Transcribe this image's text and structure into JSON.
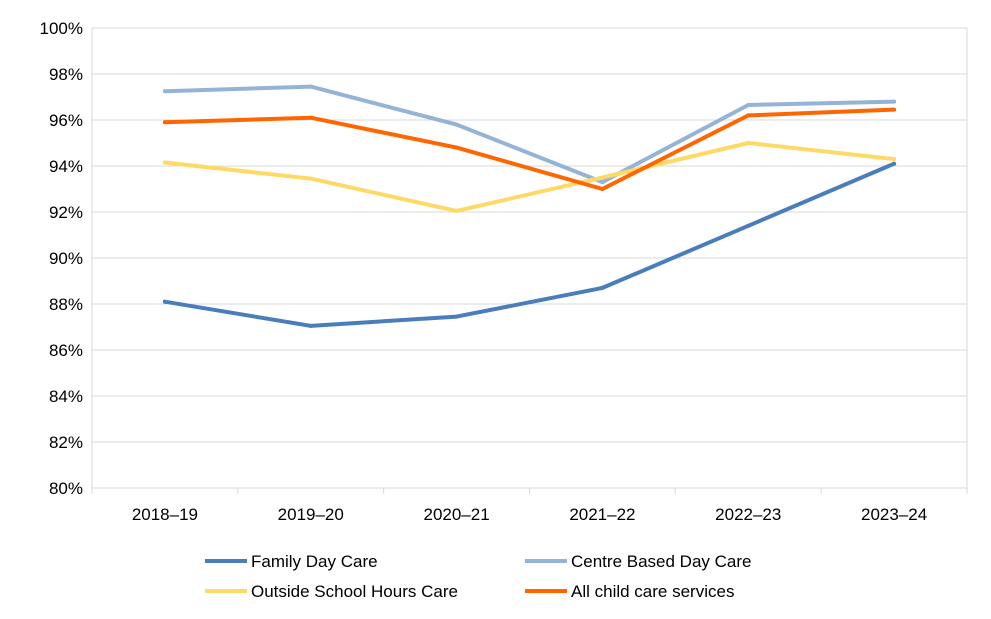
{
  "chart_data": {
    "type": "line",
    "title": "",
    "xlabel": "",
    "ylabel": "",
    "categories": [
      "2018–19",
      "2019–20",
      "2020–21",
      "2021–22",
      "2022–23",
      "2023–24"
    ],
    "ylim": [
      80,
      100
    ],
    "yticks": [
      80,
      82,
      84,
      86,
      88,
      90,
      92,
      94,
      96,
      98,
      100
    ],
    "ytick_labels": [
      "80%",
      "82%",
      "84%",
      "86%",
      "88%",
      "90%",
      "92%",
      "94%",
      "96%",
      "98%",
      "100%"
    ],
    "grid": true,
    "legend_position": "bottom",
    "series": [
      {
        "name": "Family Day Care",
        "color": "#4a7ebb",
        "values": [
          88.1,
          87.05,
          87.45,
          88.7,
          91.4,
          94.1
        ]
      },
      {
        "name": "Centre Based Day Care",
        "color": "#95b3d7",
        "values": [
          97.25,
          97.45,
          95.8,
          93.3,
          96.65,
          96.8
        ]
      },
      {
        "name": "Outside School Hours Care",
        "color": "#ffd966",
        "values": [
          94.15,
          93.45,
          92.05,
          93.5,
          95.0,
          94.3
        ]
      },
      {
        "name": "All child care services",
        "color": "#ff6600",
        "values": [
          95.9,
          96.1,
          94.8,
          93.0,
          96.2,
          96.45
        ]
      }
    ]
  }
}
